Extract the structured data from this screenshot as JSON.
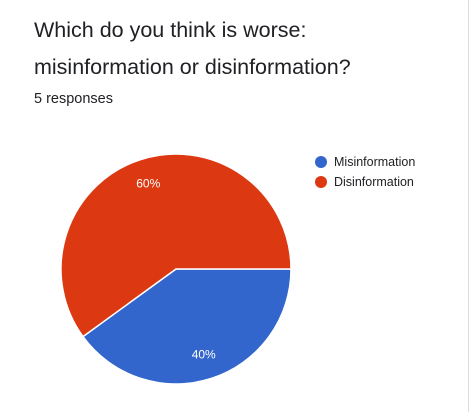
{
  "question": {
    "line1": "Which do you think is worse:",
    "line2": "misinformation or disinformation?"
  },
  "responses_label": "5 responses",
  "colors": {
    "Misinformation": "#3366cc",
    "Disinformation": "#dc3912"
  },
  "chart_data": {
    "type": "pie",
    "title": "Which do you think is worse: misinformation or disinformation?",
    "categories": [
      "Misinformation",
      "Disinformation"
    ],
    "values": [
      40,
      60
    ],
    "unit": "%",
    "data_labels": [
      "40%",
      "60%"
    ],
    "legend_position": "right"
  }
}
